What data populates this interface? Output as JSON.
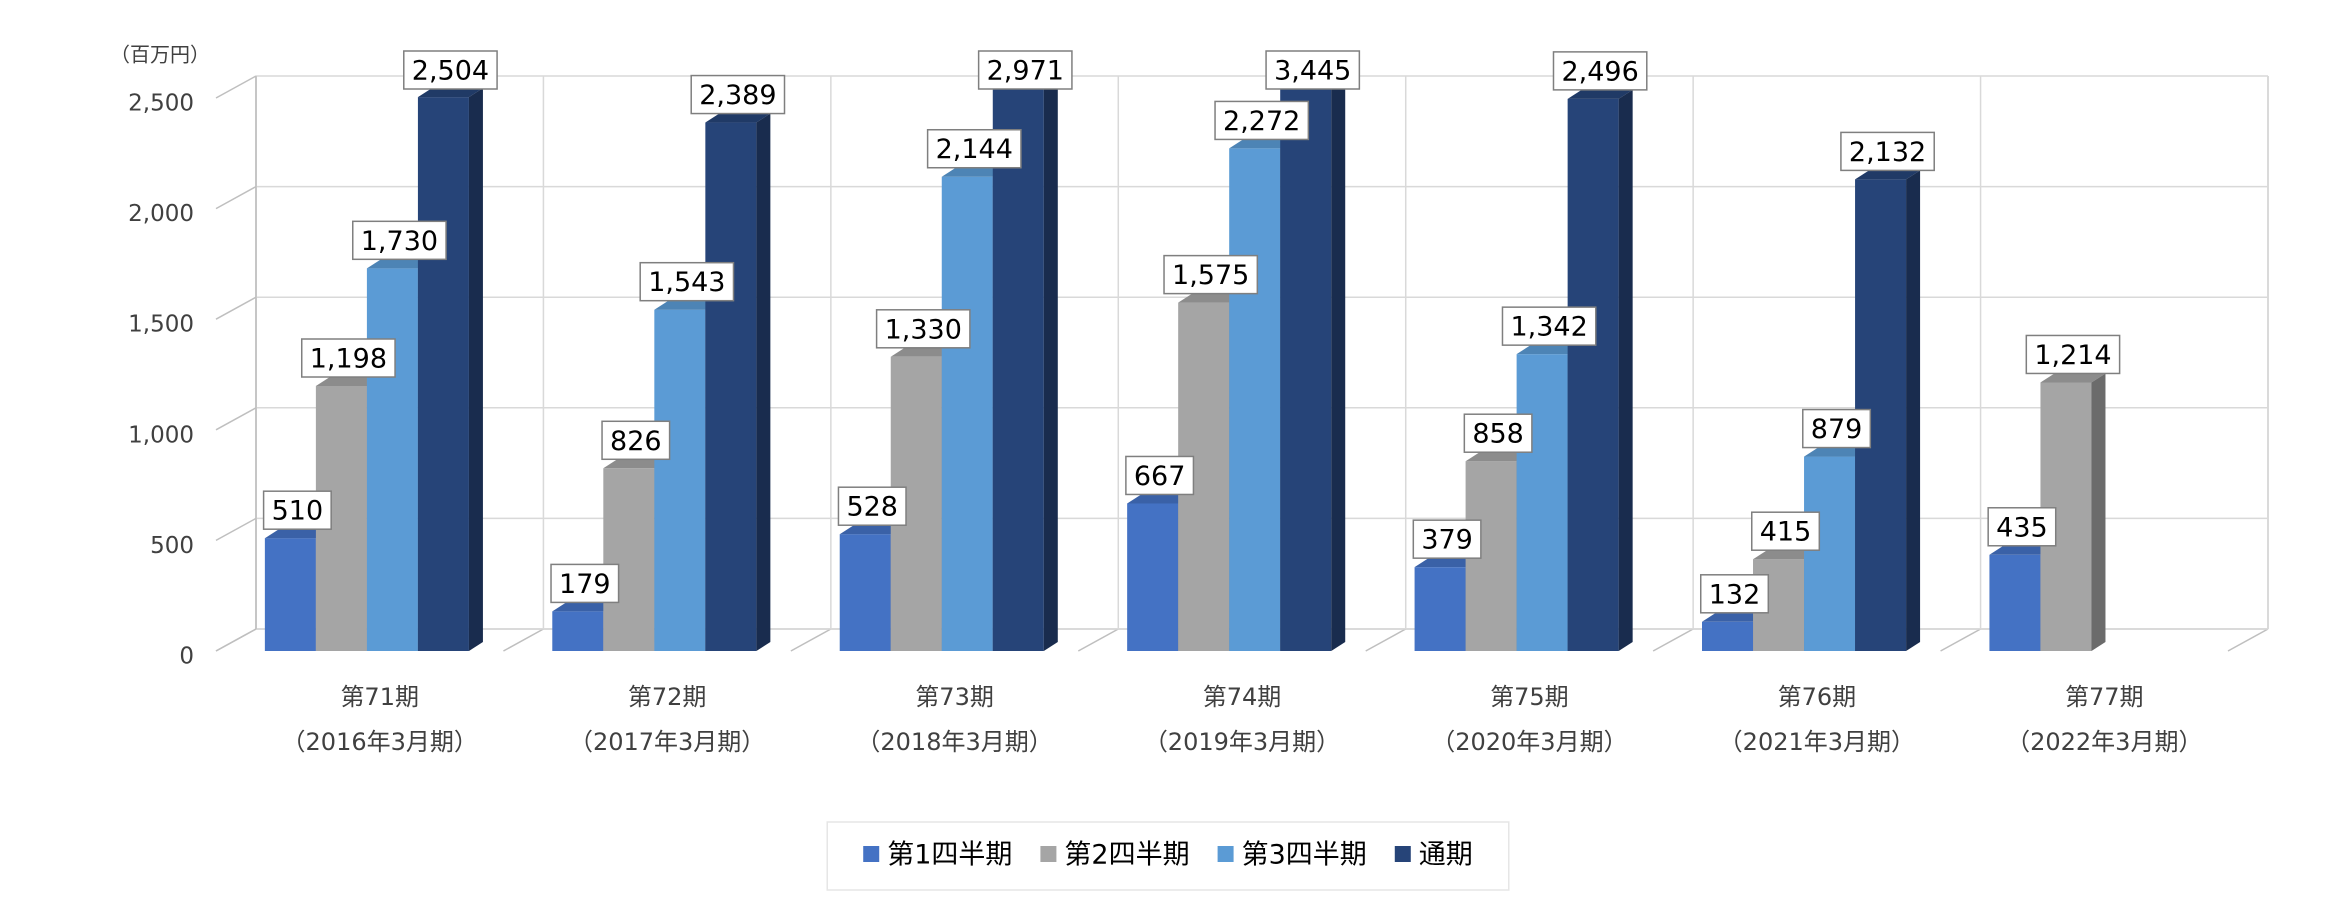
{
  "chart_data": {
    "type": "bar3d",
    "unit": "（百万円）",
    "categories": [
      [
        "第71期",
        "（2016年3月期）"
      ],
      [
        "第72期",
        "（2017年3月期）"
      ],
      [
        "第73期",
        "（2018年3月期）"
      ],
      [
        "第74期",
        "（2019年3月期）"
      ],
      [
        "第75期",
        "（2020年3月期）"
      ],
      [
        "第76期",
        "（2021年3月期）"
      ],
      [
        "第77期",
        "（2022年3月期）"
      ]
    ],
    "series": [
      {
        "name": "第1四半期",
        "color": "#4472c4",
        "values": [
          510,
          179,
          528,
          667,
          379,
          132,
          435
        ],
        "value_labels": [
          "510",
          "179",
          "528",
          "667",
          "379",
          "132",
          "435"
        ]
      },
      {
        "name": "第2四半期",
        "color": "#a5a5a5",
        "values": [
          1198,
          826,
          1330,
          1575,
          858,
          415,
          1214
        ],
        "value_labels": [
          "1,198",
          "826",
          "1,330",
          "1,575",
          "858",
          "415",
          "1,214"
        ]
      },
      {
        "name": "第3四半期",
        "color": "#5b9bd5",
        "values": [
          1730,
          1543,
          2144,
          2272,
          1342,
          879,
          null
        ],
        "value_labels": [
          "1,730",
          "1,543",
          "2,144",
          "2,272",
          "1,342",
          "879",
          null
        ]
      },
      {
        "name": "通期",
        "color": "#264478",
        "values": [
          2504,
          2389,
          2971,
          3445,
          2496,
          2132,
          null
        ],
        "value_labels": [
          "2,504",
          "2,389",
          "2,971",
          "3,445",
          "2,496",
          "2,132",
          null
        ]
      }
    ],
    "ylim": [
      0,
      2500
    ],
    "yticks": [
      0,
      500,
      {
        "value": 1000,
        "label": "1,000"
      },
      {
        "value": 1500,
        "label": "1,500"
      },
      {
        "value": 2000,
        "label": "2,000"
      },
      {
        "value": 2500,
        "label": "2,500"
      }
    ],
    "grid": true,
    "legend": "bottom"
  }
}
